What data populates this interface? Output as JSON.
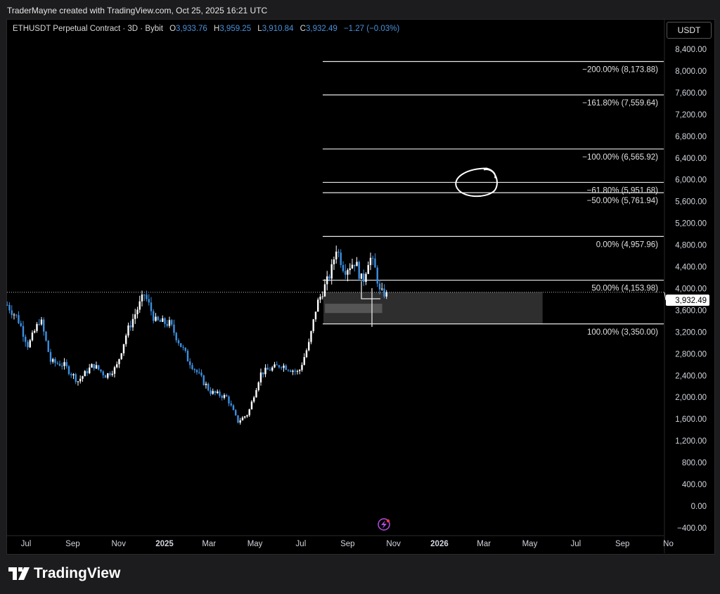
{
  "credit": "TraderMayne created with TradingView.com, Oct 25, 2025 16:21 UTC",
  "legend": {
    "symbol": "ETHUSDT Perpetual Contract · 3D · Bybit",
    "open_label": "O",
    "open": "3,933.76",
    "high_label": "H",
    "high": "3,959.25",
    "low_label": "L",
    "low": "3,910.84",
    "close_label": "C",
    "close": "3,932.49",
    "change": "−1.27 (−0.03%)"
  },
  "currency_button": "USDT",
  "footer_logo": "TradingView",
  "colors": {
    "up": "#ffffff",
    "down": "#3d8fe0",
    "background": "#000000",
    "zone": "#2e2e2e",
    "legend_value": "#4a90d9"
  },
  "icons": [
    "lightning-icon",
    "tradingview-logo-icon"
  ],
  "chart_data": {
    "type": "candlestick",
    "interval": "3D",
    "ylim": [
      -400,
      8400
    ],
    "y_ticks": [
      "8,400.00",
      "8,000.00",
      "7,600.00",
      "7,200.00",
      "6,800.00",
      "6,400.00",
      "6,000.00",
      "5,600.00",
      "5,200.00",
      "4,800.00",
      "4,400.00",
      "4,000.00",
      "3,600.00",
      "3,200.00",
      "2,800.00",
      "2,400.00",
      "2,000.00",
      "1,600.00",
      "1,200.00",
      "800.00",
      "400.00",
      "0.00",
      "−400.00"
    ],
    "y_tick_values": [
      8400,
      8000,
      7600,
      7200,
      6800,
      6400,
      6000,
      5600,
      5200,
      4800,
      4400,
      4000,
      3600,
      3200,
      2800,
      2400,
      2000,
      1600,
      1200,
      800,
      400,
      0,
      -400
    ],
    "x_ticks": [
      {
        "label": "Jul",
        "date": "2024-07-01",
        "bold": false
      },
      {
        "label": "Sep",
        "date": "2024-09-01",
        "bold": false
      },
      {
        "label": "Nov",
        "date": "2024-11-01",
        "bold": false
      },
      {
        "label": "2025",
        "date": "2025-01-01",
        "bold": true
      },
      {
        "label": "Mar",
        "date": "2025-03-01",
        "bold": false
      },
      {
        "label": "May",
        "date": "2025-05-01",
        "bold": false
      },
      {
        "label": "Jul",
        "date": "2025-07-01",
        "bold": false
      },
      {
        "label": "Sep",
        "date": "2025-09-01",
        "bold": false
      },
      {
        "label": "Nov",
        "date": "2025-11-01",
        "bold": false
      },
      {
        "label": "2026",
        "date": "2026-01-01",
        "bold": true
      },
      {
        "label": "Mar",
        "date": "2026-03-01",
        "bold": false
      },
      {
        "label": "May",
        "date": "2026-05-01",
        "bold": false
      },
      {
        "label": "Jul",
        "date": "2026-07-01",
        "bold": false
      },
      {
        "label": "Sep",
        "date": "2026-09-01",
        "bold": false
      },
      {
        "label": "No",
        "date": "2026-11-01",
        "bold": false
      }
    ],
    "price_path": [
      {
        "date": "2024-06-06",
        "close": 3700
      },
      {
        "date": "2024-06-20",
        "close": 3450
      },
      {
        "date": "2024-07-04",
        "close": 2950
      },
      {
        "date": "2024-07-20",
        "close": 3450
      },
      {
        "date": "2024-08-03",
        "close": 2650
      },
      {
        "date": "2024-08-20",
        "close": 2600
      },
      {
        "date": "2024-09-08",
        "close": 2300
      },
      {
        "date": "2024-09-28",
        "close": 2600
      },
      {
        "date": "2024-10-15",
        "close": 2400
      },
      {
        "date": "2024-10-29",
        "close": 2550
      },
      {
        "date": "2024-11-12",
        "close": 3200
      },
      {
        "date": "2024-12-05",
        "close": 3900
      },
      {
        "date": "2024-12-20",
        "close": 3400
      },
      {
        "date": "2025-01-08",
        "close": 3350
      },
      {
        "date": "2025-02-01",
        "close": 2700
      },
      {
        "date": "2025-03-03",
        "close": 2100
      },
      {
        "date": "2025-03-25",
        "close": 2000
      },
      {
        "date": "2025-04-08",
        "close": 1550
      },
      {
        "date": "2025-04-22",
        "close": 1700
      },
      {
        "date": "2025-05-09",
        "close": 2450
      },
      {
        "date": "2025-06-05",
        "close": 2600
      },
      {
        "date": "2025-06-28",
        "close": 2450
      },
      {
        "date": "2025-07-12",
        "close": 3000
      },
      {
        "date": "2025-07-22",
        "close": 3700
      },
      {
        "date": "2025-08-10",
        "close": 4300
      },
      {
        "date": "2025-08-17",
        "close": 4750
      },
      {
        "date": "2025-08-28",
        "close": 4350
      },
      {
        "date": "2025-09-11",
        "close": 4500
      },
      {
        "date": "2025-09-21",
        "close": 4100
      },
      {
        "date": "2025-09-30",
        "close": 4600
      },
      {
        "date": "2025-10-09",
        "close": 4300
      },
      {
        "date": "2025-10-14",
        "close": 3900
      },
      {
        "date": "2025-10-25",
        "close": 3932.49
      }
    ],
    "current_price": 3932.49,
    "current_price_label": "3,932.49",
    "fib_levels": [
      {
        "label": "−200.00% (8,173.88)",
        "price": 8173.88
      },
      {
        "label": "−161.80% (7,559.64)",
        "price": 7559.64
      },
      {
        "label": "−100.00% (6,565.92)",
        "price": 6565.92
      },
      {
        "label": "−61.80% (5,951.68)",
        "price": 5951.68
      },
      {
        "label": "−50.00% (5,761.94)",
        "price": 5761.94
      },
      {
        "label": "0.00% (4,957.96)",
        "price": 4957.96
      },
      {
        "label": "50.00% (4,153.98)",
        "price": 4153.98
      },
      {
        "label": "100.00% (3,350.00)",
        "price": 3350.0
      }
    ],
    "fib_start_date": "2025-07-30",
    "zone": {
      "from_date": "2025-07-31",
      "to_date": "2026-05-18",
      "top": 3932,
      "bottom": 3350
    },
    "inner_zone": {
      "from_date": "2025-08-02",
      "to_date": "2025-10-17",
      "top": 3720,
      "bottom": 3550
    },
    "circled_level": 5951.68
  }
}
